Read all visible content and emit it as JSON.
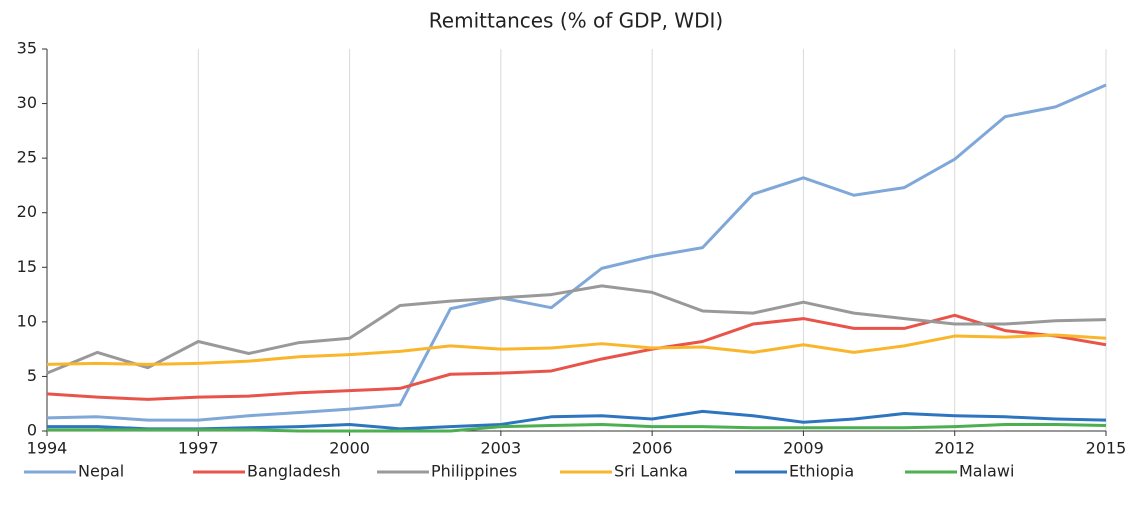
{
  "chart_data": {
    "type": "line",
    "title": "Remittances (% of GDP, WDI)",
    "x": [
      1994,
      1995,
      1996,
      1997,
      1998,
      1999,
      2000,
      2001,
      2002,
      2003,
      2004,
      2005,
      2006,
      2007,
      2008,
      2009,
      2010,
      2011,
      2012,
      2013,
      2014,
      2015
    ],
    "series": [
      {
        "name": "Nepal",
        "color": "#7fa7d8",
        "values": [
          1.2,
          1.3,
          1.0,
          1.0,
          1.4,
          1.7,
          2.0,
          2.4,
          11.2,
          12.2,
          11.3,
          14.9,
          16.0,
          16.8,
          21.7,
          23.2,
          21.6,
          22.3,
          24.9,
          28.8,
          29.7,
          31.7
        ]
      },
      {
        "name": "Bangladesh",
        "color": "#e8534a",
        "values": [
          3.4,
          3.1,
          2.9,
          3.1,
          3.2,
          3.5,
          3.7,
          3.9,
          5.2,
          5.3,
          5.5,
          6.6,
          7.5,
          8.2,
          9.8,
          10.3,
          9.4,
          9.4,
          10.6,
          9.2,
          8.7,
          7.9
        ]
      },
      {
        "name": "Philippines",
        "color": "#999999",
        "values": [
          5.3,
          7.2,
          5.8,
          8.2,
          7.1,
          8.1,
          8.5,
          11.5,
          11.9,
          12.2,
          12.5,
          13.3,
          12.7,
          11.0,
          10.8,
          11.8,
          10.8,
          10.3,
          9.8,
          9.8,
          10.1,
          10.2
        ]
      },
      {
        "name": "Sri Lanka",
        "color": "#f9b62b",
        "values": [
          6.1,
          6.2,
          6.1,
          6.2,
          6.4,
          6.8,
          7.0,
          7.3,
          7.8,
          7.5,
          7.6,
          8.0,
          7.6,
          7.7,
          7.2,
          7.9,
          7.2,
          7.8,
          8.7,
          8.6,
          8.8,
          8.5
        ]
      },
      {
        "name": "Ethiopia",
        "color": "#2e75c0",
        "values": [
          0.4,
          0.4,
          0.2,
          0.2,
          0.3,
          0.4,
          0.6,
          0.2,
          0.4,
          0.6,
          1.3,
          1.4,
          1.1,
          1.8,
          1.4,
          0.8,
          1.1,
          1.6,
          1.4,
          1.3,
          1.1,
          1.0
        ]
      },
      {
        "name": "Malawi",
        "color": "#4caf50",
        "values": [
          0.1,
          0.1,
          0.1,
          0.1,
          0.1,
          0.0,
          0.0,
          0.0,
          0.0,
          0.4,
          0.5,
          0.6,
          0.4,
          0.4,
          0.3,
          0.3,
          0.3,
          0.3,
          0.4,
          0.6,
          0.6,
          0.5
        ]
      }
    ],
    "xlim": [
      1994,
      2015
    ],
    "xticks": [
      1994,
      1997,
      2000,
      2003,
      2006,
      2009,
      2012,
      2015
    ],
    "ylim": [
      0,
      35
    ],
    "yticks": [
      0,
      5,
      10,
      15,
      20,
      25,
      30,
      35
    ],
    "grid": "x",
    "legend": "bottom"
  }
}
